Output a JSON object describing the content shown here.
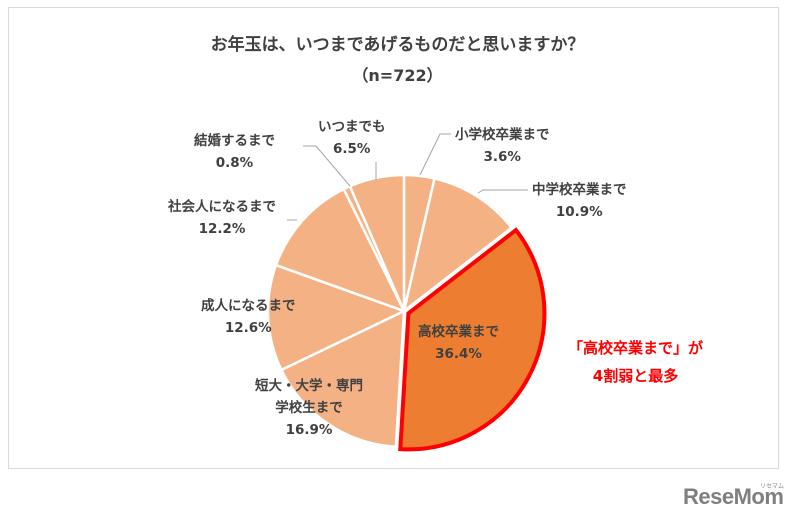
{
  "chart_data": {
    "type": "pie",
    "title": "お年玉は、いつまであげるものだと思いますか？",
    "subtitle": "（n=722）",
    "start_angle_deg": 0,
    "direction": "clockwise",
    "categories": [
      "小学校卒業まで",
      "中学校卒業まで",
      "高校卒業まで",
      "短大・大学・専門学校生まで",
      "成人になるまで",
      "社会人になるまで",
      "結婚するまで",
      "いつまでも"
    ],
    "values": [
      3.6,
      10.9,
      36.4,
      16.9,
      12.6,
      12.2,
      0.8,
      6.5
    ],
    "unit": "%",
    "highlighted": "高校卒業まで",
    "colors": {
      "default": "#F4B183",
      "highlight": "#ED7D31",
      "highlight_border": "#FF0000"
    }
  },
  "header": {
    "title": "お年玉は、いつまであげるものだと思いますか？",
    "n": "（n=722）"
  },
  "labels": {
    "shogakko": {
      "name": "小学校卒業まで",
      "pct": "3.6%"
    },
    "chugakko": {
      "name": "中学校卒業まで",
      "pct": "10.9%"
    },
    "koko": {
      "name": "高校卒業まで",
      "pct": "36.4%"
    },
    "daigaku": {
      "line1": "短大・大学・専門",
      "line2": "学校生まで",
      "pct": "16.9%"
    },
    "seijin": {
      "name": "成人になるまで",
      "pct": "12.6%"
    },
    "shakaijin": {
      "name": "社会人になるまで",
      "pct": "12.2%"
    },
    "kekkon": {
      "name": "結婚するまで",
      "pct": "0.8%"
    },
    "itsumademo": {
      "name": "いつまでも",
      "pct": "6.5%"
    }
  },
  "callout": {
    "line1": "「高校卒業まで」が",
    "line2": "4割弱と最多"
  },
  "brand": {
    "logo": "ReseMom",
    "ruby": "リセマム"
  }
}
